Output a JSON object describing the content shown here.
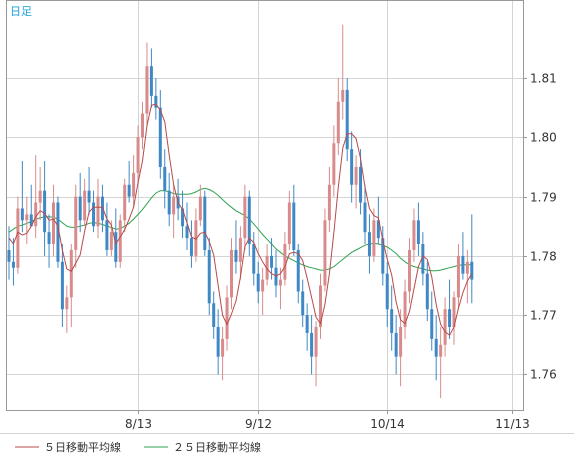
{
  "period_label": "日足",
  "colors": {
    "up": "#d98a8a",
    "down": "#3f88c5",
    "ma5": "#b84a4a",
    "ma25": "#2ea34f",
    "grid": "#d4d4d4",
    "frame": "#999999"
  },
  "legend": [
    {
      "label": "５日移動平均線",
      "color": "#b84a4a"
    },
    {
      "label": "２５日移動平均線",
      "color": "#2ea34f"
    }
  ],
  "chart_data": {
    "type": "candlestick",
    "ylim": [
      1.754,
      1.823
    ],
    "y_ticks": [
      1.76,
      1.77,
      1.78,
      1.79,
      1.8,
      1.81
    ],
    "y_tick_labels": [
      "1.76",
      "1.77",
      "1.78",
      "1.79",
      "1.80",
      "1.81"
    ],
    "x_ticks": [
      {
        "label": "8/13",
        "index": 29
      },
      {
        "label": "9/12",
        "index": 56
      },
      {
        "label": "10/14",
        "index": 85
      },
      {
        "label": "11/13",
        "index": 113
      }
    ],
    "candles": [
      [
        1.781,
        1.785,
        1.776,
        1.779
      ],
      [
        1.779,
        1.783,
        1.775,
        1.778
      ],
      [
        1.778,
        1.79,
        1.777,
        1.788
      ],
      [
        1.788,
        1.796,
        1.784,
        1.786
      ],
      [
        1.786,
        1.79,
        1.782,
        1.787
      ],
      [
        1.787,
        1.792,
        1.785,
        1.785
      ],
      [
        1.785,
        1.797,
        1.783,
        1.789
      ],
      [
        1.789,
        1.795,
        1.786,
        1.791
      ],
      [
        1.791,
        1.796,
        1.78,
        1.784
      ],
      [
        1.784,
        1.787,
        1.778,
        1.782
      ],
      [
        1.782,
        1.792,
        1.78,
        1.789
      ],
      [
        1.789,
        1.79,
        1.778,
        1.779
      ],
      [
        1.779,
        1.782,
        1.768,
        1.771
      ],
      [
        1.771,
        1.775,
        1.767,
        1.773
      ],
      [
        1.773,
        1.782,
        1.768,
        1.781
      ],
      [
        1.781,
        1.792,
        1.778,
        1.79
      ],
      [
        1.79,
        1.794,
        1.784,
        1.786
      ],
      [
        1.786,
        1.793,
        1.785,
        1.791
      ],
      [
        1.791,
        1.795,
        1.787,
        1.789
      ],
      [
        1.789,
        1.791,
        1.784,
        1.785
      ],
      [
        1.785,
        1.793,
        1.783,
        1.79
      ],
      [
        1.79,
        1.792,
        1.784,
        1.786
      ],
      [
        1.786,
        1.789,
        1.78,
        1.781
      ],
      [
        1.781,
        1.786,
        1.78,
        1.784
      ],
      [
        1.784,
        1.788,
        1.778,
        1.779
      ],
      [
        1.779,
        1.787,
        1.778,
        1.786
      ],
      [
        1.786,
        1.793,
        1.784,
        1.792
      ],
      [
        1.792,
        1.796,
        1.789,
        1.79
      ],
      [
        1.79,
        1.797,
        1.788,
        1.794
      ],
      [
        1.794,
        1.802,
        1.792,
        1.8
      ],
      [
        1.8,
        1.806,
        1.798,
        1.804
      ],
      [
        1.804,
        1.816,
        1.802,
        1.812
      ],
      [
        1.812,
        1.815,
        1.805,
        1.807
      ],
      [
        1.807,
        1.81,
        1.803,
        1.805
      ],
      [
        1.805,
        1.808,
        1.793,
        1.795
      ],
      [
        1.795,
        1.798,
        1.788,
        1.791
      ],
      [
        1.791,
        1.794,
        1.785,
        1.787
      ],
      [
        1.787,
        1.792,
        1.783,
        1.79
      ],
      [
        1.79,
        1.793,
        1.786,
        1.788
      ],
      [
        1.788,
        1.791,
        1.783,
        1.785
      ],
      [
        1.785,
        1.789,
        1.781,
        1.783
      ],
      [
        1.783,
        1.786,
        1.778,
        1.78
      ],
      [
        1.78,
        1.788,
        1.779,
        1.786
      ],
      [
        1.786,
        1.792,
        1.785,
        1.79
      ],
      [
        1.79,
        1.791,
        1.78,
        1.781
      ],
      [
        1.781,
        1.783,
        1.77,
        1.772
      ],
      [
        1.772,
        1.774,
        1.766,
        1.768
      ],
      [
        1.768,
        1.771,
        1.76,
        1.763
      ],
      [
        1.763,
        1.768,
        1.759,
        1.766
      ],
      [
        1.766,
        1.775,
        1.764,
        1.773
      ],
      [
        1.773,
        1.783,
        1.771,
        1.781
      ],
      [
        1.781,
        1.786,
        1.777,
        1.779
      ],
      [
        1.779,
        1.785,
        1.776,
        1.783
      ],
      [
        1.783,
        1.792,
        1.781,
        1.79
      ],
      [
        1.79,
        1.791,
        1.78,
        1.782
      ],
      [
        1.782,
        1.784,
        1.775,
        1.777
      ],
      [
        1.777,
        1.779,
        1.772,
        1.774
      ],
      [
        1.774,
        1.778,
        1.77,
        1.776
      ],
      [
        1.776,
        1.782,
        1.775,
        1.78
      ],
      [
        1.78,
        1.783,
        1.776,
        1.778
      ],
      [
        1.778,
        1.781,
        1.773,
        1.775
      ],
      [
        1.775,
        1.778,
        1.771,
        1.776
      ],
      [
        1.776,
        1.784,
        1.775,
        1.782
      ],
      [
        1.782,
        1.791,
        1.781,
        1.789
      ],
      [
        1.789,
        1.792,
        1.78,
        1.781
      ],
      [
        1.781,
        1.782,
        1.772,
        1.774
      ],
      [
        1.774,
        1.776,
        1.768,
        1.77
      ],
      [
        1.77,
        1.772,
        1.764,
        1.767
      ],
      [
        1.767,
        1.77,
        1.76,
        1.763
      ],
      [
        1.763,
        1.769,
        1.758,
        1.768
      ],
      [
        1.768,
        1.777,
        1.766,
        1.775
      ],
      [
        1.775,
        1.788,
        1.774,
        1.786
      ],
      [
        1.786,
        1.795,
        1.784,
        1.792
      ],
      [
        1.792,
        1.802,
        1.79,
        1.799
      ],
      [
        1.799,
        1.81,
        1.797,
        1.806
      ],
      [
        1.806,
        1.819,
        1.803,
        1.808
      ],
      [
        1.808,
        1.81,
        1.796,
        1.798
      ],
      [
        1.798,
        1.801,
        1.789,
        1.792
      ],
      [
        1.792,
        1.797,
        1.788,
        1.795
      ],
      [
        1.795,
        1.798,
        1.787,
        1.789
      ],
      [
        1.789,
        1.792,
        1.782,
        1.784
      ],
      [
        1.784,
        1.787,
        1.777,
        1.78
      ],
      [
        1.78,
        1.788,
        1.779,
        1.786
      ],
      [
        1.786,
        1.79,
        1.782,
        1.783
      ],
      [
        1.783,
        1.785,
        1.775,
        1.777
      ],
      [
        1.777,
        1.779,
        1.768,
        1.771
      ],
      [
        1.771,
        1.775,
        1.764,
        1.767
      ],
      [
        1.767,
        1.77,
        1.76,
        1.763
      ],
      [
        1.763,
        1.771,
        1.758,
        1.768
      ],
      [
        1.768,
        1.776,
        1.766,
        1.774
      ],
      [
        1.774,
        1.783,
        1.772,
        1.781
      ],
      [
        1.781,
        1.788,
        1.779,
        1.786
      ],
      [
        1.786,
        1.789,
        1.78,
        1.782
      ],
      [
        1.782,
        1.784,
        1.775,
        1.777
      ],
      [
        1.777,
        1.779,
        1.769,
        1.771
      ],
      [
        1.771,
        1.774,
        1.764,
        1.766
      ],
      [
        1.766,
        1.77,
        1.759,
        1.763
      ],
      [
        1.763,
        1.768,
        1.756,
        1.765
      ],
      [
        1.765,
        1.773,
        1.763,
        1.771
      ],
      [
        1.771,
        1.776,
        1.766,
        1.768
      ],
      [
        1.768,
        1.774,
        1.765,
        1.773
      ],
      [
        1.773,
        1.782,
        1.771,
        1.78
      ],
      [
        1.78,
        1.784,
        1.776,
        1.777
      ],
      [
        1.777,
        1.781,
        1.772,
        1.779
      ],
      [
        1.779,
        1.787,
        1.772,
        1.776
      ]
    ],
    "ma5": [
      1.783,
      1.782,
      1.784,
      1.7835,
      1.7838,
      1.785,
      1.7866,
      1.7876,
      1.7872,
      1.786,
      1.7862,
      1.785,
      1.781,
      1.7778,
      1.7774,
      1.7788,
      1.7802,
      1.7842,
      1.7874,
      1.7882,
      1.7882,
      1.7882,
      1.7862,
      1.7852,
      1.782,
      1.7832,
      1.7844,
      1.7862,
      1.7882,
      1.7924,
      1.796,
      1.802,
      1.8054,
      1.8056,
      1.8046,
      1.8026,
      1.797,
      1.792,
      1.789,
      1.7878,
      1.7856,
      1.7832,
      1.7828,
      1.7838,
      1.784,
      1.7824,
      1.7802,
      1.775,
      1.77,
      1.7684,
      1.7702,
      1.7724,
      1.7764,
      1.7816,
      1.783,
      1.7822,
      1.7804,
      1.779,
      1.7778,
      1.777,
      1.7766,
      1.777,
      1.7782,
      1.7804,
      1.7806,
      1.7804,
      1.7792,
      1.7762,
      1.773,
      1.7696,
      1.7686,
      1.7718,
      1.777,
      1.784,
      1.7916,
      1.7982,
      1.8006,
      1.8006,
      1.7998,
      1.7964,
      1.7916,
      1.788,
      1.7868,
      1.7864,
      1.7826,
      1.7794,
      1.7768,
      1.7722,
      1.7692,
      1.7686,
      1.7706,
      1.7744,
      1.7782,
      1.78,
      1.7794,
      1.7764,
      1.7718,
      1.7684,
      1.7672,
      1.7666,
      1.768,
      1.7712,
      1.7738,
      1.7758,
      1.777
    ],
    "ma25": [
      1.784,
      1.7845,
      1.785,
      1.7852,
      1.7855,
      1.7858,
      1.7862,
      1.7864,
      1.7866,
      1.7866,
      1.7865,
      1.7862,
      1.7856,
      1.785,
      1.7848,
      1.7848,
      1.785,
      1.7852,
      1.7855,
      1.7856,
      1.7855,
      1.7853,
      1.785,
      1.7848,
      1.7845,
      1.7846,
      1.785,
      1.7855,
      1.7862,
      1.787,
      1.7878,
      1.7888,
      1.7898,
      1.7906,
      1.791,
      1.791,
      1.7908,
      1.7905,
      1.7904,
      1.7904,
      1.7904,
      1.7905,
      1.7908,
      1.7912,
      1.7914,
      1.7912,
      1.7908,
      1.7902,
      1.7895,
      1.7888,
      1.7882,
      1.7876,
      1.7872,
      1.7868,
      1.7862,
      1.7854,
      1.7845,
      1.7836,
      1.7828,
      1.782,
      1.7812,
      1.7806,
      1.78,
      1.7796,
      1.7792,
      1.7788,
      1.7785,
      1.7782,
      1.778,
      1.7778,
      1.7776,
      1.7776,
      1.7778,
      1.7782,
      1.7788,
      1.7794,
      1.78,
      1.7806,
      1.781,
      1.7814,
      1.7818,
      1.782,
      1.7821,
      1.782,
      1.7818,
      1.7815,
      1.781,
      1.7804,
      1.7796,
      1.779,
      1.7785,
      1.7782,
      1.778,
      1.7778,
      1.7776,
      1.7775,
      1.7775,
      1.7776,
      1.7778,
      1.778,
      1.7782,
      1.7784,
      1.7785,
      1.7785,
      1.7785
    ]
  }
}
